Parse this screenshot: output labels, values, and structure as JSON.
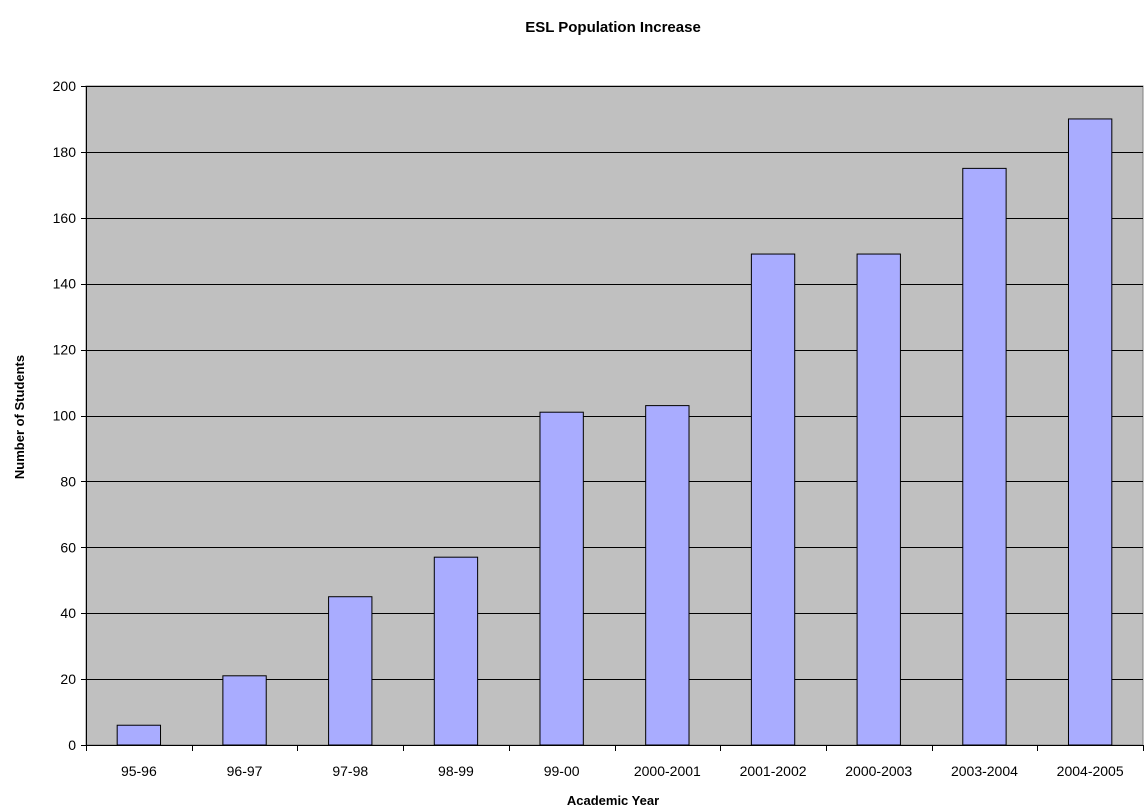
{
  "chart_data": {
    "type": "bar",
    "title": "ESL Population Increase",
    "xlabel": "Academic Year",
    "ylabel": "Number of Students",
    "categories": [
      "95-96",
      "96-97",
      "97-98",
      "98-99",
      "99-00",
      "2000-2001",
      "2001-2002",
      "2000-2003",
      "2003-2004",
      "2004-2005"
    ],
    "values": [
      6,
      21,
      45,
      57,
      101,
      103,
      149,
      149,
      175,
      190
    ],
    "ylim": [
      0,
      200
    ],
    "yticks": [
      "0",
      "20",
      "40",
      "60",
      "80",
      "100",
      "120",
      "140",
      "160",
      "180",
      "200"
    ],
    "grid": true,
    "legend": "none",
    "colors": {
      "plot_background": "#c0c0c0",
      "bar_fill": "#a9acff",
      "bar_stroke": "#000000",
      "gridline": "#000000"
    }
  }
}
